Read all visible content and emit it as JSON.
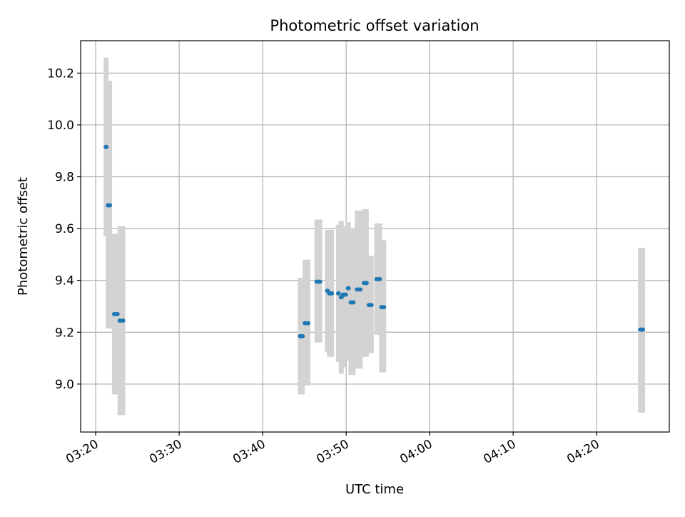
{
  "chart_data": {
    "type": "scatter",
    "title": "Photometric offset variation",
    "xlabel": "UTC time",
    "ylabel": "Photometric offset",
    "x_axis_type": "time",
    "xlim": [
      "03:18:12",
      "04:28:42"
    ],
    "ylim": [
      8.815,
      10.325
    ],
    "x_ticks": [
      "03:20",
      "03:30",
      "03:40",
      "03:50",
      "04:00",
      "04:10",
      "04:20"
    ],
    "y_ticks": [
      "9.0",
      "9.2",
      "9.4",
      "9.6",
      "9.8",
      "10.0",
      "10.2"
    ],
    "grid": true,
    "marker_color": "#1f77b4",
    "errorbar_color": "#d3d3d3",
    "points": [
      {
        "t": "03:21:15",
        "y": 9.915,
        "lo": 9.57,
        "hi": 10.26
      },
      {
        "t": "03:21:30",
        "y": 9.69,
        "lo": 9.215,
        "hi": 10.17
      },
      {
        "t": "03:21:40",
        "y": 9.69,
        "lo": 9.215,
        "hi": 10.17
      },
      {
        "t": "03:22:15",
        "y": 9.27,
        "lo": 8.96,
        "hi": 9.58
      },
      {
        "t": "03:22:35",
        "y": 9.27,
        "lo": 8.96,
        "hi": 9.58
      },
      {
        "t": "03:22:55",
        "y": 9.245,
        "lo": 8.88,
        "hi": 9.61
      },
      {
        "t": "03:23:15",
        "y": 9.245,
        "lo": 8.88,
        "hi": 9.61
      },
      {
        "t": "03:44:30",
        "y": 9.185,
        "lo": 8.96,
        "hi": 9.41
      },
      {
        "t": "03:44:45",
        "y": 9.185,
        "lo": 8.96,
        "hi": 9.41
      },
      {
        "t": "03:45:05",
        "y": 9.235,
        "lo": 8.995,
        "hi": 9.48
      },
      {
        "t": "03:45:25",
        "y": 9.235,
        "lo": 8.995,
        "hi": 9.48
      },
      {
        "t": "03:46:30",
        "y": 9.395,
        "lo": 9.16,
        "hi": 9.635
      },
      {
        "t": "03:46:50",
        "y": 9.395,
        "lo": 9.16,
        "hi": 9.635
      },
      {
        "t": "03:47:45",
        "y": 9.36,
        "lo": 9.125,
        "hi": 9.595
      },
      {
        "t": "03:48:00",
        "y": 9.35,
        "lo": 9.105,
        "hi": 9.595
      },
      {
        "t": "03:48:15",
        "y": 9.35,
        "lo": 9.105,
        "hi": 9.595
      },
      {
        "t": "03:49:05",
        "y": 9.35,
        "lo": 9.085,
        "hi": 9.615
      },
      {
        "t": "03:49:25",
        "y": 9.335,
        "lo": 9.04,
        "hi": 9.63
      },
      {
        "t": "03:49:40",
        "y": 9.345,
        "lo": 9.065,
        "hi": 9.61
      },
      {
        "t": "03:49:55",
        "y": 9.345,
        "lo": 9.1,
        "hi": 9.6
      },
      {
        "t": "03:50:15",
        "y": 9.37,
        "lo": 9.09,
        "hi": 9.625
      },
      {
        "t": "03:50:35",
        "y": 9.315,
        "lo": 9.035,
        "hi": 9.6
      },
      {
        "t": "03:50:50",
        "y": 9.315,
        "lo": 9.035,
        "hi": 9.6
      },
      {
        "t": "03:51:20",
        "y": 9.365,
        "lo": 9.06,
        "hi": 9.67
      },
      {
        "t": "03:51:40",
        "y": 9.365,
        "lo": 9.06,
        "hi": 9.67
      },
      {
        "t": "03:52:10",
        "y": 9.39,
        "lo": 9.105,
        "hi": 9.675
      },
      {
        "t": "03:52:25",
        "y": 9.39,
        "lo": 9.105,
        "hi": 9.675
      },
      {
        "t": "03:52:45",
        "y": 9.305,
        "lo": 9.12,
        "hi": 9.495
      },
      {
        "t": "03:53:00",
        "y": 9.305,
        "lo": 9.12,
        "hi": 9.495
      },
      {
        "t": "03:53:40",
        "y": 9.405,
        "lo": 9.19,
        "hi": 9.62
      },
      {
        "t": "03:54:00",
        "y": 9.405,
        "lo": 9.19,
        "hi": 9.62
      },
      {
        "t": "03:54:15",
        "y": 9.297,
        "lo": 9.045,
        "hi": 9.555
      },
      {
        "t": "03:54:30",
        "y": 9.297,
        "lo": 9.045,
        "hi": 9.555
      },
      {
        "t": "04:25:15",
        "y": 9.21,
        "lo": 8.89,
        "hi": 9.525
      },
      {
        "t": "04:25:30",
        "y": 9.21,
        "lo": 8.89,
        "hi": 9.525
      }
    ]
  }
}
